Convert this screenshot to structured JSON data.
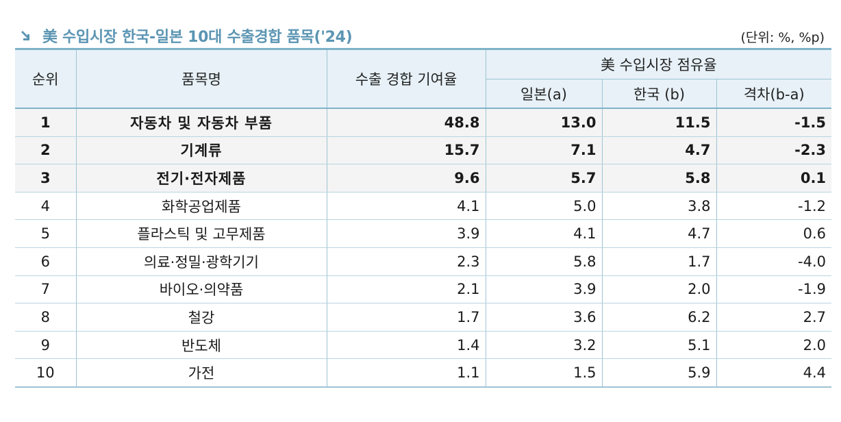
{
  "header": {
    "title": "美 수입시장 한국-일본 10대 수출경합 품목('24)",
    "unit": "(단위: %, %p)"
  },
  "columns": {
    "rank": "순위",
    "item": "품목명",
    "contribution": "수출 경합 기여율",
    "share_group": "美 수입시장 점유율",
    "japan": "일본(a)",
    "korea": "한국 (b)",
    "gap": "격차(b-a)"
  },
  "rows": [
    {
      "rank": "1",
      "item": "자동차 및 자동차 부품",
      "contribution": "48.8",
      "japan": "13.0",
      "korea": "11.5",
      "gap": "-1.5",
      "bold": true
    },
    {
      "rank": "2",
      "item": "기계류",
      "contribution": "15.7",
      "japan": "7.1",
      "korea": "4.7",
      "gap": "-2.3",
      "bold": true
    },
    {
      "rank": "3",
      "item": "전기·전자제품",
      "contribution": "9.6",
      "japan": "5.7",
      "korea": "5.8",
      "gap": "0.1",
      "bold": true
    },
    {
      "rank": "4",
      "item": "화학공업제품",
      "contribution": "4.1",
      "japan": "5.0",
      "korea": "3.8",
      "gap": "-1.2",
      "bold": false
    },
    {
      "rank": "5",
      "item": "플라스틱 및 고무제품",
      "contribution": "3.9",
      "japan": "4.1",
      "korea": "4.7",
      "gap": "0.6",
      "bold": false
    },
    {
      "rank": "6",
      "item": "의료·정밀·광학기기",
      "contribution": "2.3",
      "japan": "5.8",
      "korea": "1.7",
      "gap": "-4.0",
      "bold": false
    },
    {
      "rank": "7",
      "item": "바이오·의약품",
      "contribution": "2.1",
      "japan": "3.9",
      "korea": "2.0",
      "gap": "-1.9",
      "bold": false
    },
    {
      "rank": "8",
      "item": "철강",
      "contribution": "1.7",
      "japan": "3.6",
      "korea": "6.2",
      "gap": "2.7",
      "bold": false
    },
    {
      "rank": "9",
      "item": "반도체",
      "contribution": "1.4",
      "japan": "3.2",
      "korea": "5.1",
      "gap": "2.0",
      "bold": false
    },
    {
      "rank": "10",
      "item": "가전",
      "contribution": "1.1",
      "japan": "1.5",
      "korea": "5.9",
      "gap": "4.4",
      "bold": false
    }
  ],
  "colors": {
    "title": "#5b95b3",
    "header_bg": "#e7f1f7",
    "border": "#7fb2c8"
  },
  "icons": {
    "title_marker": "arrow-down-right-icon"
  }
}
